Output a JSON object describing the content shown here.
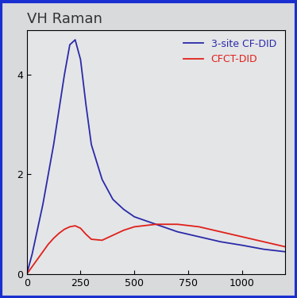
{
  "chart_data": {
    "type": "line",
    "title": "VH Raman",
    "x": [
      0,
      25,
      50,
      75,
      100,
      125,
      150,
      175,
      200,
      225,
      250,
      275,
      300,
      350,
      400,
      450,
      500,
      600,
      700,
      800,
      900,
      1000,
      1100,
      1200
    ],
    "series": [
      {
        "name": "3-site CF-DID",
        "color": "#2a2aa8",
        "values": [
          0,
          0.4,
          0.9,
          1.4,
          2.0,
          2.6,
          3.3,
          4.0,
          4.6,
          4.7,
          4.3,
          3.4,
          2.6,
          1.9,
          1.5,
          1.3,
          1.15,
          1.0,
          0.85,
          0.75,
          0.65,
          0.58,
          0.5,
          0.45
        ]
      },
      {
        "name": "CFCT-DID",
        "color": "#e0201a",
        "values": [
          0,
          0.15,
          0.3,
          0.45,
          0.6,
          0.72,
          0.82,
          0.9,
          0.95,
          0.97,
          0.92,
          0.8,
          0.7,
          0.68,
          0.78,
          0.88,
          0.95,
          1.0,
          1.0,
          0.95,
          0.85,
          0.75,
          0.65,
          0.55
        ]
      }
    ],
    "xlim": [
      0,
      1200
    ],
    "xticks": [
      0,
      250,
      500,
      750,
      1000
    ],
    "ylim": [
      0,
      4.9
    ],
    "yticks": [
      0,
      2,
      4
    ],
    "legend": "upper right",
    "grid": false
  }
}
